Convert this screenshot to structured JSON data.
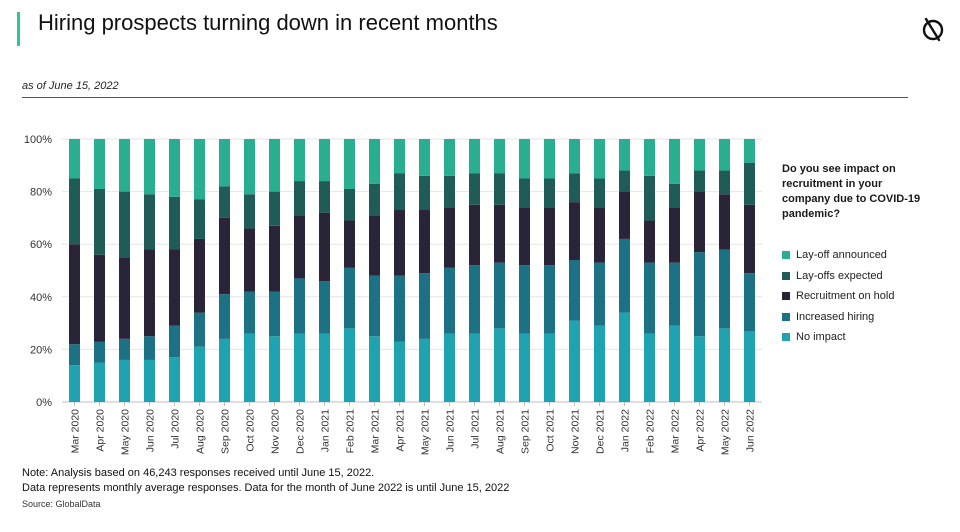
{
  "header": {
    "title": "Hiring prospects turning down in recent months",
    "as_of": "as of June 15, 2022"
  },
  "icons": {
    "logo": "globaldata-logo-icon"
  },
  "legend": {
    "title": "Do you see impact on recruitment in your company due to COVID-19 pandemic?"
  },
  "footer": {
    "note_line1": "Note: Analysis based on 46,243 responses received until June 15, 2022.",
    "note_line2": "Data represents monthly average responses. Data for the month of June 2022 is until June 15, 2022",
    "source": "Source: GlobalData"
  },
  "chart_data": {
    "type": "bar",
    "stacked": true,
    "percent": true,
    "categories": [
      "Mar 2020",
      "Apr 2020",
      "May 2020",
      "Jun 2020",
      "Jul 2020",
      "Aug 2020",
      "Sep 2020",
      "Oct 2020",
      "Nov 2020",
      "Dec 2020",
      "Jan 2021",
      "Feb 2021",
      "Mar 2021",
      "Apr 2021",
      "May 2021",
      "Jun 2021",
      "Jul 2021",
      "Aug 2021",
      "Sep 2021",
      "Oct 2021",
      "Nov 2021",
      "Dec 2021",
      "Jan 2022",
      "Feb 2022",
      "Mar 2022",
      "Apr 2022",
      "May 2022",
      "Jun 2022"
    ],
    "series": [
      {
        "name": "No impact",
        "color": "#1fa3b0",
        "values": [
          14,
          15,
          16,
          16,
          17,
          21,
          24,
          26,
          25,
          26,
          26,
          28,
          25,
          23,
          24,
          26,
          26,
          28,
          26,
          26,
          31,
          29,
          34,
          26,
          29,
          25,
          28,
          27
        ]
      },
      {
        "name": "Increased hiring",
        "color": "#1c7184",
        "values": [
          8,
          8,
          8,
          9,
          12,
          13,
          17,
          16,
          17,
          21,
          20,
          23,
          23,
          25,
          25,
          25,
          26,
          25,
          26,
          26,
          23,
          24,
          28,
          27,
          24,
          32,
          30,
          22
        ]
      },
      {
        "name": "Recruitment on hold",
        "color": "#2a2438",
        "values": [
          38,
          33,
          31,
          33,
          29,
          28,
          29,
          24,
          25,
          24,
          26,
          18,
          23,
          25,
          24,
          23,
          23,
          22,
          22,
          22,
          22,
          21,
          18,
          16,
          21,
          23,
          21,
          26
        ]
      },
      {
        "name": "Lay-offs expected",
        "color": "#1f5c58",
        "values": [
          25,
          25,
          25,
          21,
          20,
          15,
          12,
          13,
          13,
          13,
          12,
          12,
          12,
          14,
          13,
          12,
          12,
          12,
          11,
          11,
          11,
          11,
          8,
          17,
          9,
          8,
          9,
          16
        ]
      },
      {
        "name": "Lay-off announced",
        "color": "#29ae8f",
        "values": [
          15,
          19,
          20,
          21,
          22,
          23,
          18,
          21,
          20,
          16,
          16,
          19,
          17,
          13,
          14,
          14,
          13,
          13,
          15,
          15,
          13,
          15,
          12,
          14,
          17,
          12,
          12,
          9
        ]
      }
    ],
    "legend_order": [
      "Lay-off announced",
      "Lay-offs expected",
      "Recruitment on hold",
      "Increased hiring",
      "No impact"
    ],
    "y_ticks": [
      "0%",
      "20%",
      "40%",
      "60%",
      "80%",
      "100%"
    ],
    "ylim": [
      0,
      100
    ],
    "grid": true,
    "legend_position": "right"
  }
}
